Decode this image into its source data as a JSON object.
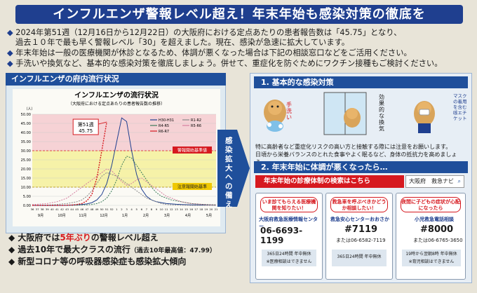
{
  "banner": {
    "title": "インフルエンザ警報レベル超え！年末年始も感染対策の徹底を"
  },
  "bullets": [
    {
      "pre": "2024年第51週（12月16日から12月22日）の大阪府における定点あたりの患者報告数は「45.75」となり、"
    },
    {
      "pre": "過去１０年で最も早く警報レベル「30」を超えました。現在、感染が急速に拡大しています。"
    },
    {
      "pre": "年末年始は一般の医療機関が休診となるため、体調が悪くなった場合は下記の相談窓口などをご活用ください。"
    },
    {
      "pre": "手洗いや換気など、基本的な感染対策を徹底しましょう。併せて、重症化を防ぐためにワクチン接種もご検討ください。"
    }
  ],
  "left": {
    "header": "インフルエンザの府内流行状況",
    "chart_title": "インフルエンザの流行状況",
    "chart_subtitle": "（大阪府における定点あたりの患者報告数の推移）",
    "callout_week": "第51週",
    "callout_value": "45.75",
    "alarm_label": "警報開始基準値",
    "warning_label": "注意報開始基準",
    "unit": "（人）",
    "bottom": [
      {
        "pre": "大阪府では",
        "red": "5年ぶり",
        "post": "の警報レベル超え"
      },
      {
        "pre": "過去10年で最大クラスの流行",
        "small": "（過去10年最高値：47.99）",
        "post": ""
      },
      {
        "pre": "新型コロナ等の呼吸器感染症も感染拡大傾向",
        "small": "",
        "post": ""
      }
    ]
  },
  "arrow_text": "感染拡大への備え",
  "right": {
    "head1": "1. 基本的な感染対策",
    "labels": {
      "handwash": "手洗い",
      "ventilation": "効果的な換気",
      "mask": "マスクの着用を含む咳エチケット"
    },
    "measures_text": "特に高齢者など重症化リスクの高い方と接触する際には注意をお願いします。\n日頃から栄養バランスのとれた食事やよく眠るなど、身体の抵抗力を高めましょう。",
    "head2": "2. 年末年始に体調が悪くなったら…",
    "search_label": "年末年始の診療体制の検索はこちら",
    "search_box": "大阪府　救急ナビ",
    "cards": [
      {
        "bubble": "いま診てもらえる医療機関を知りたい！",
        "title": "大阪府救急医療情報センター",
        "phone": "06-6693-1199",
        "hours": "365日24時間 年中無休",
        "note": "※医療相談はできません"
      },
      {
        "bubble": "救急車を呼ぶべきかどうか相談したい！",
        "title": "救急安心センターおおさか",
        "phone": "#7119",
        "alt": "または06-6582-7119",
        "hours": "365日24時間 年中無休"
      },
      {
        "bubble": "夜間に子どもの症状が心配になったら",
        "title": "小児救急電話相談",
        "phone": "#8000",
        "alt": "または06-6765-3650",
        "hours": "19時から翌朝8時 年中無休",
        "note": "※育児相談はできません"
      }
    ]
  },
  "chart_data": {
    "type": "line",
    "title": "インフルエンザの流行状況",
    "subtitle": "（大阪府における定点あたりの患者報告数の推移）",
    "ylabel": "（人）",
    "ylim": [
      0,
      50
    ],
    "yticks": [
      "0.00",
      "5.00",
      "10.00",
      "15.00",
      "20.00",
      "25.00",
      "30.00",
      "35.00",
      "40.00",
      "45.00",
      "50.00"
    ],
    "x_month_labels": [
      "9月",
      "10月",
      "11月",
      "12月",
      "1月",
      "2月",
      "3月",
      "4月",
      "5月"
    ],
    "x_week_labels": [
      "36",
      "37",
      "38",
      "39",
      "40",
      "41",
      "42",
      "43",
      "44",
      "45",
      "46",
      "47",
      "48",
      "49",
      "50",
      "51",
      "52",
      "1",
      "2",
      "3",
      "4",
      "5",
      "6",
      "7",
      "8",
      "9",
      "10",
      "11",
      "12",
      "13",
      "14",
      "15",
      "16",
      "17",
      "18",
      "19",
      "20",
      "21"
    ],
    "thresholds": [
      {
        "name": "警報開始基準値",
        "value": 30
      },
      {
        "name": "注意報開始基準",
        "value": 10
      }
    ],
    "series": [
      {
        "name": "H30-H31",
        "color": "#1f3f8f",
        "values": [
          0,
          0,
          0,
          0,
          0,
          0,
          0,
          0,
          0.2,
          0.3,
          0.5,
          0.8,
          1.5,
          3,
          6,
          12,
          22,
          35,
          48,
          46,
          30,
          17,
          9,
          5,
          3,
          2,
          1.5,
          1,
          0.8,
          0.6,
          0.5,
          0.4,
          0.3,
          0.3,
          0.2,
          0.2,
          0.2,
          0.1
        ]
      },
      {
        "name": "R1-R2",
        "color": "#888888",
        "values": [
          0,
          0,
          0.1,
          0.2,
          0.3,
          0.5,
          0.8,
          1,
          1.5,
          2,
          3,
          5,
          8,
          12,
          16,
          18,
          17,
          16,
          14,
          12,
          10,
          8,
          6,
          4,
          3,
          2,
          1,
          0.5,
          0.3,
          0.2,
          0.1,
          0.1,
          0,
          0,
          0,
          0,
          0,
          0
        ]
      },
      {
        "name": "R4-R5",
        "color": "#3a7a5a",
        "values": [
          0,
          0,
          0,
          0,
          0,
          0,
          0,
          0,
          0,
          0.1,
          0.2,
          0.3,
          0.5,
          1,
          2,
          4,
          8,
          14,
          22,
          27,
          26,
          22,
          18,
          14,
          10,
          7,
          5,
          4,
          3,
          2.5,
          2,
          1.5,
          1,
          0.8,
          0.6,
          0.5,
          0.4,
          0.3
        ]
      },
      {
        "name": "R5-R6",
        "color": "#d47fa0",
        "values": [
          0.5,
          0.6,
          0.8,
          1,
          1.5,
          2,
          3,
          4,
          6,
          8,
          10,
          12,
          14,
          16,
          18,
          20,
          19,
          16,
          13,
          11,
          12,
          14,
          15,
          13,
          11,
          9,
          7,
          5,
          4,
          3,
          2,
          1.5,
          1,
          0.8,
          0.6,
          0.4,
          0.3,
          0.2
        ]
      },
      {
        "name": "R6-R7",
        "color": "#d6191f",
        "values": [
          0,
          0,
          0,
          0,
          0,
          0,
          0,
          0.1,
          0.2,
          0.5,
          1,
          2.5,
          6,
          15,
          30,
          45.75,
          null,
          null,
          null,
          null,
          null,
          null,
          null,
          null,
          null,
          null,
          null,
          null,
          null,
          null,
          null,
          null,
          null,
          null,
          null,
          null,
          null,
          null
        ]
      }
    ]
  }
}
